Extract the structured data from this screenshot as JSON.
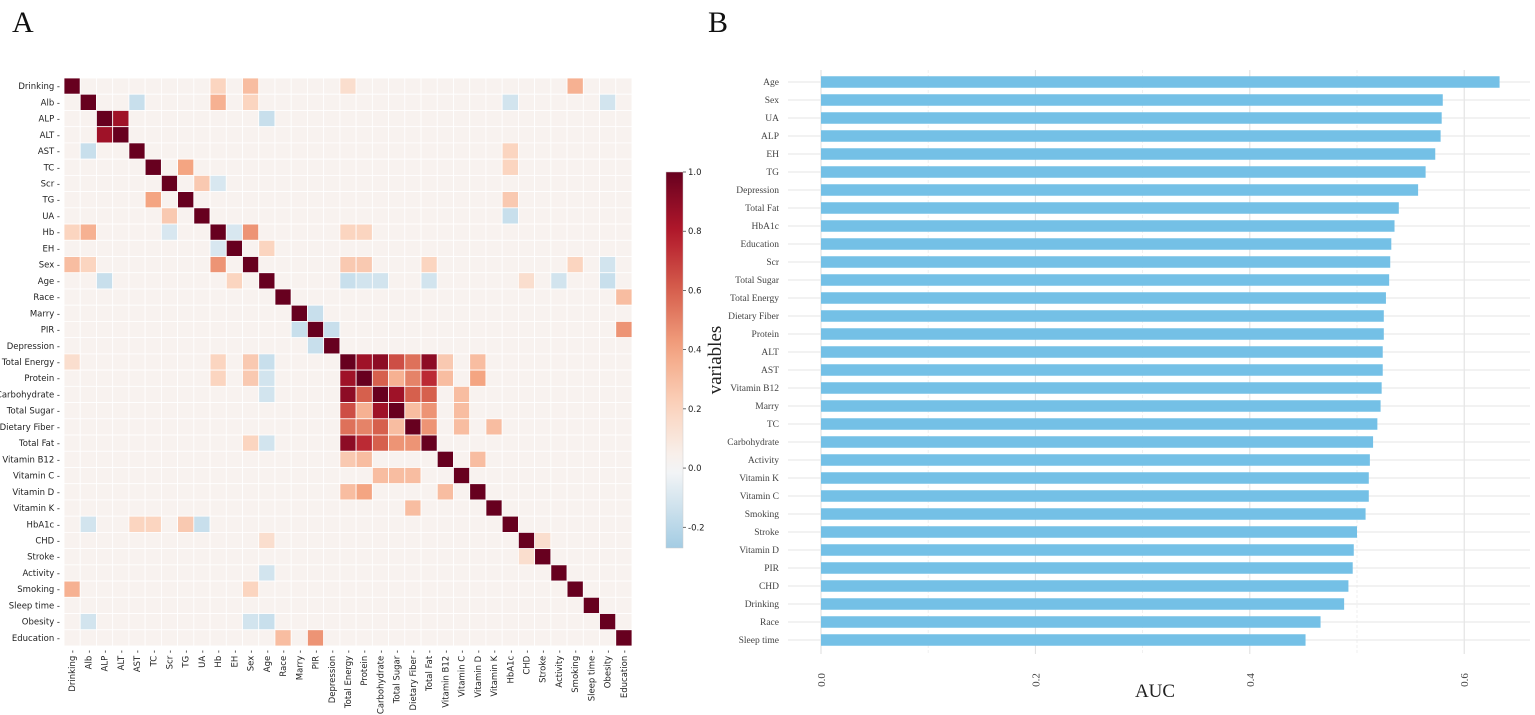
{
  "panels": {
    "a": "A",
    "b": "B"
  },
  "chart_data": [
    {
      "type": "heatmap",
      "title": "",
      "variables": [
        "Drinking",
        "Alb",
        "ALP",
        "ALT",
        "AST",
        "TC",
        "Scr",
        "TG",
        "UA",
        "Hb",
        "EH",
        "Sex",
        "Age",
        "Race",
        "Marry",
        "PIR",
        "Depression",
        "Total Energy",
        "Protein",
        "Carbohydrate",
        "Total Sugar",
        "Dietary Fiber",
        "Total Fat",
        "Vitamin B12",
        "Vitamin C",
        "Vitamin D",
        "Vitamin K",
        "HbA1c",
        "CHD",
        "Stroke",
        "Activity",
        "Smoking",
        "Sleep time",
        "Obesity",
        "Education"
      ],
      "diagonal_value": 1.0,
      "default_offdiagonal_value": 0.03,
      "notable_pairs": [
        [
          "ALP",
          "ALT",
          0.85
        ],
        [
          "Alb",
          "Hb",
          0.35
        ],
        [
          "Alb",
          "AST",
          -0.15
        ],
        [
          "Alb",
          "Obesity",
          -0.12
        ],
        [
          "Alb",
          "Sex",
          0.2
        ],
        [
          "Alb",
          "HbA1c",
          -0.12
        ],
        [
          "Drinking",
          "Sex",
          0.3
        ],
        [
          "Drinking",
          "Smoking",
          0.35
        ],
        [
          "Drinking",
          "Hb",
          0.2
        ],
        [
          "Drinking",
          "Total Energy",
          0.15
        ],
        [
          "TC",
          "TG",
          0.4
        ],
        [
          "Scr",
          "UA",
          0.25
        ],
        [
          "Scr",
          "Hb",
          -0.1
        ],
        [
          "Hb",
          "Sex",
          0.45
        ],
        [
          "Hb",
          "EH",
          -0.1
        ],
        [
          "EH",
          "Age",
          0.2
        ],
        [
          "ALP",
          "Age",
          -0.15
        ],
        [
          "Age",
          "Obesity",
          -0.15
        ],
        [
          "Age",
          "Total Energy",
          -0.15
        ],
        [
          "Age",
          "Protein",
          -0.12
        ],
        [
          "Age",
          "Carbohydrate",
          -0.12
        ],
        [
          "Age",
          "Total Fat",
          -0.12
        ],
        [
          "Age",
          "Activity",
          -0.12
        ],
        [
          "Age",
          "CHD",
          0.15
        ],
        [
          "PIR",
          "Education",
          0.45
        ],
        [
          "Race",
          "Education",
          0.3
        ],
        [
          "Marry",
          "PIR",
          -0.15
        ],
        [
          "PIR",
          "Depression",
          -0.15
        ],
        [
          "Sex",
          "Obesity",
          -0.12
        ],
        [
          "Total Energy",
          "Protein",
          0.85
        ],
        [
          "Total Energy",
          "Carbohydrate",
          0.9
        ],
        [
          "Total Energy",
          "Total Sugar",
          0.65
        ],
        [
          "Total Energy",
          "Dietary Fiber",
          0.55
        ],
        [
          "Total Energy",
          "Total Fat",
          0.9
        ],
        [
          "Protein",
          "Carbohydrate",
          0.6
        ],
        [
          "Protein",
          "Total Sugar",
          0.35
        ],
        [
          "Protein",
          "Dietary Fiber",
          0.5
        ],
        [
          "Protein",
          "Total Fat",
          0.75
        ],
        [
          "Carbohydrate",
          "Total Sugar",
          0.85
        ],
        [
          "Carbohydrate",
          "Dietary Fiber",
          0.6
        ],
        [
          "Carbohydrate",
          "Total Fat",
          0.6
        ],
        [
          "Total Sugar",
          "Dietary Fiber",
          0.3
        ],
        [
          "Total Sugar",
          "Total Fat",
          0.45
        ],
        [
          "Dietary Fiber",
          "Total Fat",
          0.45
        ],
        [
          "Vitamin B12",
          "Protein",
          0.3
        ],
        [
          "Vitamin B12",
          "Total Energy",
          0.25
        ],
        [
          "Vitamin B12",
          "Vitamin D",
          0.3
        ],
        [
          "Vitamin C",
          "Carbohydrate",
          0.3
        ],
        [
          "Vitamin C",
          "Total Sugar",
          0.3
        ],
        [
          "Vitamin C",
          "Dietary Fiber",
          0.3
        ],
        [
          "Vitamin D",
          "Protein",
          0.4
        ],
        [
          "Vitamin D",
          "Total Energy",
          0.3
        ],
        [
          "Vitamin K",
          "Dietary Fiber",
          0.3
        ],
        [
          "HbA1c",
          "AST",
          0.2
        ],
        [
          "HbA1c",
          "TC",
          0.2
        ],
        [
          "HbA1c",
          "TG",
          0.25
        ],
        [
          "HbA1c",
          "UA",
          -0.15
        ],
        [
          "Sex",
          "Total Energy",
          0.25
        ],
        [
          "Sex",
          "Protein",
          0.25
        ],
        [
          "Sex",
          "Total Fat",
          0.2
        ],
        [
          "Hb",
          "Total Energy",
          0.2
        ],
        [
          "Hb",
          "Protein",
          0.2
        ],
        [
          "CHD",
          "Stroke",
          0.15
        ],
        [
          "Sex",
          "Smoking",
          0.2
        ]
      ],
      "colorbar": {
        "min": -0.27,
        "max": 1.0,
        "ticks": [
          "1.0",
          "0.8",
          "0.6",
          "0.4",
          "0.2",
          "0.0",
          "-0.2"
        ],
        "colormap": "RdBu_r"
      }
    },
    {
      "type": "bar",
      "orientation": "horizontal",
      "xlabel": "AUC",
      "ylabel": "variables",
      "xlim": [
        0,
        0.66
      ],
      "xticks": [
        "0.0",
        "0.2",
        "0.4",
        "0.6"
      ],
      "categories": [
        "Age",
        "Sex",
        "UA",
        "ALP",
        "EH",
        "TG",
        "Depression",
        "Total Fat",
        "HbA1c",
        "Education",
        "Scr",
        "Total Sugar",
        "Total Energy",
        "Dietary Fiber",
        "Protein",
        "ALT",
        "AST",
        "Vitamin B12",
        "Marry",
        "TC",
        "Carbohydrate",
        "Activity",
        "Vitamin K",
        "Vitamin C",
        "Smoking",
        "Stroke",
        "Vitamin D",
        "PIR",
        "CHD",
        "Drinking",
        "Race",
        "Sleep time"
      ],
      "values": [
        0.633,
        0.58,
        0.579,
        0.578,
        0.573,
        0.564,
        0.557,
        0.539,
        0.535,
        0.532,
        0.531,
        0.53,
        0.527,
        0.525,
        0.525,
        0.524,
        0.524,
        0.523,
        0.522,
        0.519,
        0.515,
        0.512,
        0.511,
        0.511,
        0.508,
        0.5,
        0.497,
        0.496,
        0.492,
        0.488,
        0.466,
        0.452
      ],
      "bar_color": "#74c0e6"
    }
  ]
}
